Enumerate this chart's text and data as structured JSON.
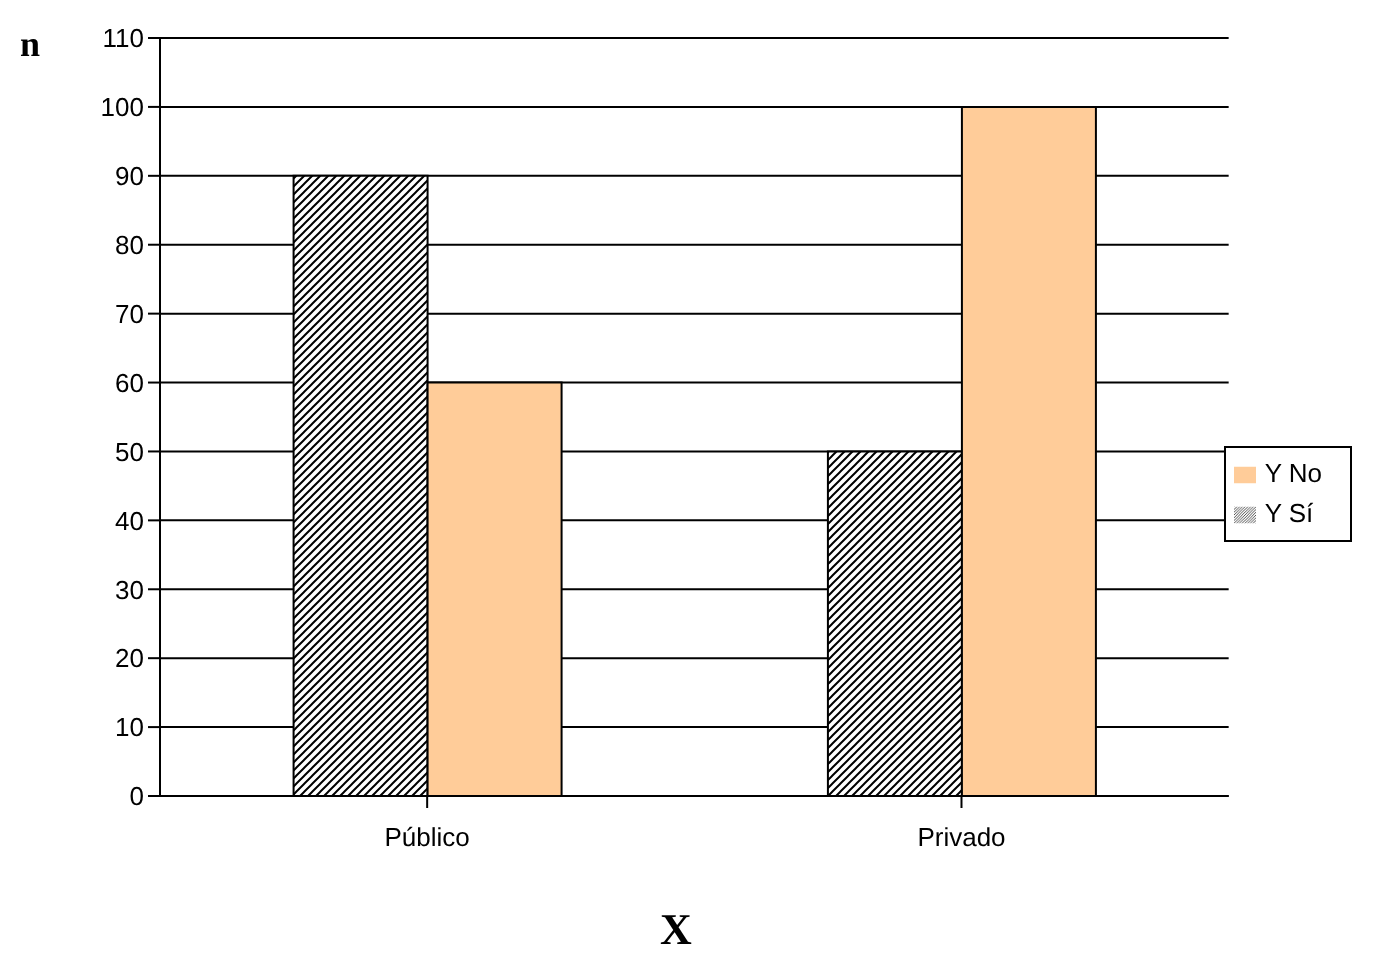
{
  "chart_data": {
    "type": "bar",
    "xlabel": "X",
    "ylabel": "n",
    "categories": [
      "Público",
      "Privado"
    ],
    "series": [
      {
        "name": "Y Sí",
        "color": "#000000",
        "values": [
          90,
          50
        ]
      },
      {
        "name": "Y No",
        "color": "#ffcc99",
        "values": [
          60,
          100
        ]
      }
    ],
    "ylim": [
      0,
      110
    ],
    "yticks": [
      0,
      10,
      20,
      30,
      40,
      50,
      60,
      70,
      80,
      90,
      100,
      110
    ],
    "grid": "y",
    "legend": "right"
  }
}
